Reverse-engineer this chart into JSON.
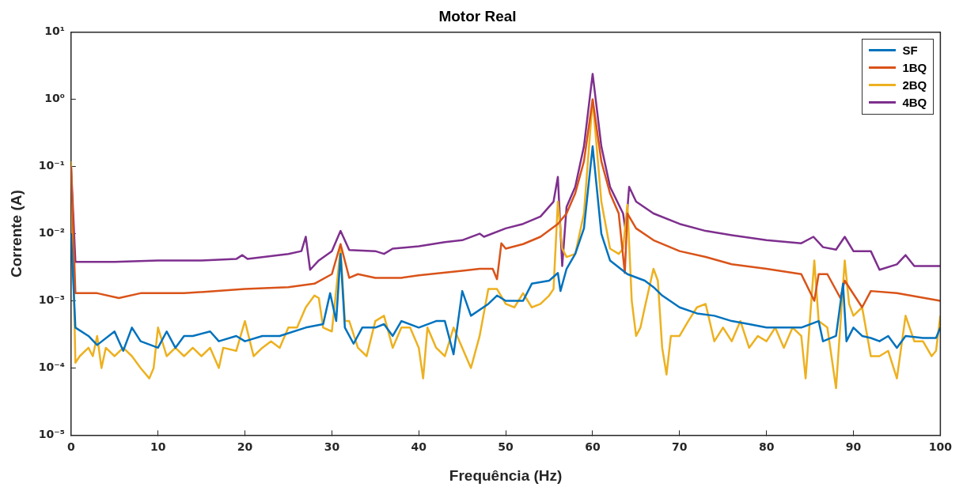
{
  "chart_data": {
    "type": "line",
    "title": "Motor Real",
    "xlabel": "Frequência (Hz)",
    "ylabel": "Corrente (A)",
    "xlim": [
      0,
      100
    ],
    "xticks": [
      0,
      10,
      20,
      30,
      40,
      50,
      60,
      70,
      80,
      90,
      100
    ],
    "ylim": [
      1e-05,
      10
    ],
    "log": "y",
    "yticks": [
      {
        "value": 1e-05,
        "label": "10⁻⁵"
      },
      {
        "value": 0.0001,
        "label": "10⁻⁴"
      },
      {
        "value": 0.001,
        "label": "10⁻³"
      },
      {
        "value": 0.01,
        "label": "10⁻²"
      },
      {
        "value": 0.1,
        "label": "10⁻¹"
      },
      {
        "value": 1,
        "label": "10⁰"
      },
      {
        "value": 10,
        "label": "10¹"
      }
    ],
    "grid": false,
    "legend": "top right",
    "series": [
      {
        "name": "SF",
        "color": "#0072bd",
        "x": [
          0,
          0.5,
          2,
          3,
          5,
          6,
          7,
          8,
          10,
          11,
          12,
          13,
          14,
          16,
          17,
          19,
          20,
          22,
          24,
          27,
          29,
          29.8,
          30.5,
          31,
          31.5,
          32.5,
          33.5,
          35,
          36,
          37,
          38,
          40,
          42,
          43,
          44,
          45,
          46,
          48,
          49,
          50,
          52,
          53,
          55,
          56,
          56.3,
          57,
          58,
          59,
          60,
          61,
          62,
          64,
          66,
          67,
          68,
          70,
          72,
          74,
          76,
          78,
          80,
          82,
          84,
          86,
          86.5,
          88,
          88.8,
          89.2,
          90,
          91,
          92,
          93,
          94,
          95,
          96,
          98,
          99.5,
          100
        ],
        "values": [
          0.01,
          0.0004,
          0.0003,
          0.00022,
          0.00035,
          0.00018,
          0.0004,
          0.00025,
          0.0002,
          0.00035,
          0.0002,
          0.0003,
          0.0003,
          0.00035,
          0.00025,
          0.0003,
          0.00025,
          0.0003,
          0.0003,
          0.0004,
          0.00045,
          0.0013,
          0.0005,
          0.005,
          0.0004,
          0.00023,
          0.0004,
          0.0004,
          0.00045,
          0.0003,
          0.0005,
          0.0004,
          0.0005,
          0.0005,
          0.00016,
          0.0014,
          0.0006,
          0.0009,
          0.0012,
          0.001,
          0.001,
          0.0018,
          0.002,
          0.0026,
          0.0014,
          0.003,
          0.005,
          0.012,
          0.2,
          0.01,
          0.004,
          0.0025,
          0.002,
          0.0016,
          0.0012,
          0.0008,
          0.00065,
          0.0006,
          0.0005,
          0.00045,
          0.0004,
          0.0004,
          0.0004,
          0.0005,
          0.00025,
          0.0003,
          0.0018,
          0.00025,
          0.0004,
          0.0003,
          0.00028,
          0.00025,
          0.0003,
          0.0002,
          0.0003,
          0.00028,
          0.00028,
          0.0004
        ]
      },
      {
        "name": "1BQ",
        "color": "#d95319",
        "x": [
          0,
          0.5,
          3,
          5.5,
          8,
          13,
          20,
          25,
          28,
          30,
          31,
          32,
          33,
          35,
          38,
          40,
          45,
          47,
          48.5,
          49,
          49.5,
          50,
          52,
          54,
          56,
          57,
          58,
          59,
          60,
          61,
          62,
          63,
          63.7,
          64,
          65,
          67,
          70,
          73,
          76,
          80,
          84,
          85.5,
          86,
          87,
          88.5,
          89,
          91,
          92,
          95,
          100
        ],
        "values": [
          0.1,
          0.0013,
          0.0013,
          0.0011,
          0.0013,
          0.0013,
          0.0015,
          0.0016,
          0.0018,
          0.0025,
          0.007,
          0.0022,
          0.0025,
          0.0022,
          0.0022,
          0.0024,
          0.0028,
          0.003,
          0.003,
          0.0021,
          0.0072,
          0.006,
          0.007,
          0.009,
          0.014,
          0.02,
          0.04,
          0.12,
          1,
          0.12,
          0.04,
          0.02,
          0.0026,
          0.02,
          0.012,
          0.008,
          0.0055,
          0.0045,
          0.0035,
          0.003,
          0.0025,
          0.001,
          0.0025,
          0.0025,
          0.0011,
          0.002,
          0.0008,
          0.0014,
          0.0013,
          0.001
        ]
      },
      {
        "name": "2BQ",
        "color": "#edb120",
        "x": [
          0,
          0.5,
          1,
          2,
          2.5,
          3,
          3.5,
          4,
          5,
          6,
          7,
          8,
          9,
          9.5,
          10,
          11,
          12,
          13,
          14,
          15,
          16,
          17,
          17.5,
          19,
          20,
          21,
          22,
          23,
          24,
          25,
          26,
          27,
          28,
          28.5,
          29,
          30,
          31,
          31.5,
          32,
          33,
          34,
          35,
          36,
          37,
          38,
          39,
          40,
          40.5,
          41,
          42,
          43,
          44,
          45,
          46,
          47,
          48,
          49,
          50,
          51,
          52,
          53,
          54,
          55,
          55.5,
          56,
          56.5,
          57,
          58,
          59,
          60,
          61,
          62,
          63,
          63.5,
          64,
          64.5,
          65,
          65.5,
          66,
          67,
          67.5,
          68,
          68.5,
          69,
          70,
          71,
          72,
          73,
          74,
          75,
          76,
          77,
          78,
          79,
          80,
          81,
          82,
          83,
          84,
          84.5,
          85.5,
          86,
          87,
          88,
          89,
          89.5,
          90,
          91,
          92,
          93,
          94,
          95,
          96,
          97,
          98,
          99,
          99.5,
          100
        ],
        "values": [
          0.12,
          0.00012,
          0.00015,
          0.0002,
          0.00015,
          0.0003,
          0.0001,
          0.0002,
          0.00015,
          0.0002,
          0.00015,
          0.0001,
          7e-05,
          0.0001,
          0.0004,
          0.00015,
          0.0002,
          0.00015,
          0.0002,
          0.00015,
          0.0002,
          0.0001,
          0.0002,
          0.00018,
          0.0005,
          0.00015,
          0.0002,
          0.00025,
          0.0002,
          0.0004,
          0.0004,
          0.0008,
          0.0012,
          0.0011,
          0.0004,
          0.00035,
          0.006,
          0.0005,
          0.0005,
          0.0002,
          0.00015,
          0.0005,
          0.0006,
          0.0002,
          0.0004,
          0.0004,
          0.0002,
          7e-05,
          0.0004,
          0.0002,
          0.00015,
          0.0004,
          0.0002,
          0.0001,
          0.0003,
          0.0015,
          0.0015,
          0.0009,
          0.0008,
          0.0013,
          0.0008,
          0.0009,
          0.0012,
          0.0015,
          0.03,
          0.006,
          0.0045,
          0.005,
          0.02,
          1,
          0.03,
          0.006,
          0.005,
          0.006,
          0.027,
          0.001,
          0.0003,
          0.0004,
          0.0008,
          0.003,
          0.002,
          0.0002,
          8e-05,
          0.0003,
          0.0003,
          0.0005,
          0.0008,
          0.0009,
          0.00025,
          0.0004,
          0.00025,
          0.0005,
          0.0002,
          0.0003,
          0.00025,
          0.0004,
          0.0002,
          0.0004,
          0.0003,
          7e-05,
          0.004,
          0.0005,
          0.0004,
          5e-05,
          0.004,
          0.0009,
          0.0006,
          0.0008,
          0.00015,
          0.00015,
          0.00018,
          7e-05,
          0.0006,
          0.00025,
          0.00025,
          0.00015,
          0.00018,
          0.0006
        ]
      },
      {
        "name": "4BQ",
        "color": "#7e2f8e",
        "x": [
          0,
          0.5,
          5,
          10,
          15,
          19,
          19.7,
          20.3,
          25,
          26.5,
          27,
          27.5,
          28.5,
          30,
          31,
          32,
          35,
          36,
          37,
          40,
          43,
          45,
          47,
          47.5,
          50,
          52,
          54,
          55.5,
          56,
          56.5,
          57,
          58,
          59,
          60,
          61,
          62,
          63.5,
          63.8,
          64.2,
          65,
          67,
          70,
          73,
          76,
          80,
          84,
          85.4,
          86.5,
          88,
          89,
          90,
          92,
          93,
          95,
          96,
          97,
          100
        ],
        "values": [
          0.1,
          0.0038,
          0.0038,
          0.004,
          0.004,
          0.0042,
          0.0048,
          0.0042,
          0.005,
          0.0055,
          0.009,
          0.0029,
          0.004,
          0.0055,
          0.011,
          0.0057,
          0.0055,
          0.005,
          0.006,
          0.0065,
          0.0075,
          0.008,
          0.01,
          0.009,
          0.012,
          0.014,
          0.018,
          0.03,
          0.07,
          0.0033,
          0.025,
          0.05,
          0.2,
          2.4,
          0.2,
          0.05,
          0.02,
          0.011,
          0.05,
          0.03,
          0.02,
          0.014,
          0.011,
          0.0095,
          0.008,
          0.0072,
          0.009,
          0.0063,
          0.0058,
          0.009,
          0.0055,
          0.0055,
          0.0029,
          0.0035,
          0.0048,
          0.0033,
          0.0033
        ]
      }
    ]
  }
}
